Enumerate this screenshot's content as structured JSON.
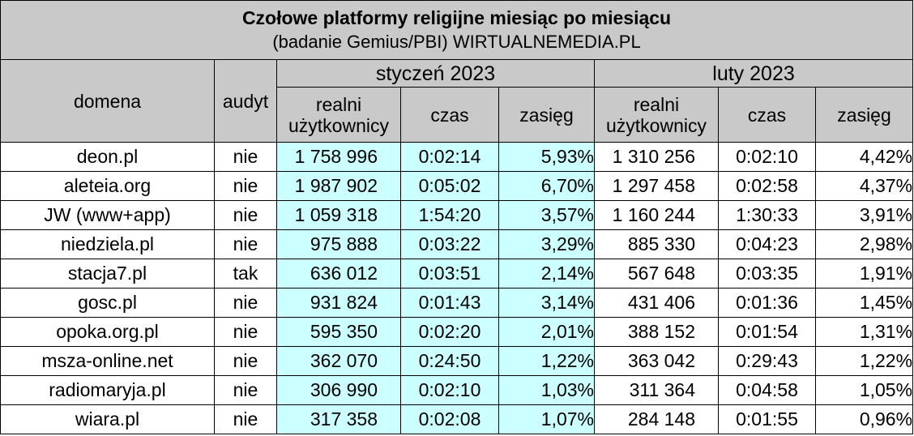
{
  "title": "Czołowe platformy religijne miesiąc po miesiącu",
  "subtitle": "(badanie Gemius/PBI) WIRTUALNEMEDIA.PL",
  "headers": {
    "domain": "domena",
    "audit": "audyt",
    "months": [
      "styczeń 2023",
      "luty 2023"
    ],
    "users_line1": "realni",
    "users_line2": "użytkownicy",
    "time": "czas",
    "reach": "zasięg"
  },
  "colors": {
    "header_bg": "#c9c9c9",
    "january_bg": "#ccffff"
  },
  "rows": [
    {
      "domain": "deon.pl",
      "audit": "nie",
      "jan": {
        "users": "1 758 996",
        "time": "0:02:14",
        "reach": "5,93%"
      },
      "feb": {
        "users": "1 310 256",
        "time": "0:02:10",
        "reach": "4,42%"
      }
    },
    {
      "domain": "aleteia.org",
      "audit": "nie",
      "jan": {
        "users": "1 987 902",
        "time": "0:05:02",
        "reach": "6,70%"
      },
      "feb": {
        "users": "1 297 458",
        "time": "0:02:58",
        "reach": "4,37%"
      }
    },
    {
      "domain": "JW (www+app)",
      "audit": "nie",
      "jan": {
        "users": "1 059 318",
        "time": "1:54:20",
        "reach": "3,57%"
      },
      "feb": {
        "users": "1 160 244",
        "time": "1:30:33",
        "reach": "3,91%"
      }
    },
    {
      "domain": "niedziela.pl",
      "audit": "nie",
      "jan": {
        "users": "975 888",
        "time": "0:03:22",
        "reach": "3,29%"
      },
      "feb": {
        "users": "885 330",
        "time": "0:04:23",
        "reach": "2,98%"
      }
    },
    {
      "domain": "stacja7.pl",
      "audit": "tak",
      "jan": {
        "users": "636 012",
        "time": "0:03:51",
        "reach": "2,14%"
      },
      "feb": {
        "users": "567 648",
        "time": "0:03:35",
        "reach": "1,91%"
      }
    },
    {
      "domain": "gosc.pl",
      "audit": "nie",
      "jan": {
        "users": "931 824",
        "time": "0:01:43",
        "reach": "3,14%"
      },
      "feb": {
        "users": "431 406",
        "time": "0:01:36",
        "reach": "1,45%"
      }
    },
    {
      "domain": "opoka.org.pl",
      "audit": "nie",
      "jan": {
        "users": "595 350",
        "time": "0:02:20",
        "reach": "2,01%"
      },
      "feb": {
        "users": "388 152",
        "time": "0:01:54",
        "reach": "1,31%"
      }
    },
    {
      "domain": "msza-online.net",
      "audit": "nie",
      "jan": {
        "users": "362 070",
        "time": "0:24:50",
        "reach": "1,22%"
      },
      "feb": {
        "users": "363 042",
        "time": "0:29:43",
        "reach": "1,22%"
      }
    },
    {
      "domain": "radiomaryja.pl",
      "audit": "nie",
      "jan": {
        "users": "306 990",
        "time": "0:02:10",
        "reach": "1,03%"
      },
      "feb": {
        "users": "311 364",
        "time": "0:04:58",
        "reach": "1,05%"
      }
    },
    {
      "domain": "wiara.pl",
      "audit": "nie",
      "jan": {
        "users": "317 358",
        "time": "0:02:08",
        "reach": "1,07%"
      },
      "feb": {
        "users": "284 148",
        "time": "0:01:55",
        "reach": "0,96%"
      }
    }
  ]
}
